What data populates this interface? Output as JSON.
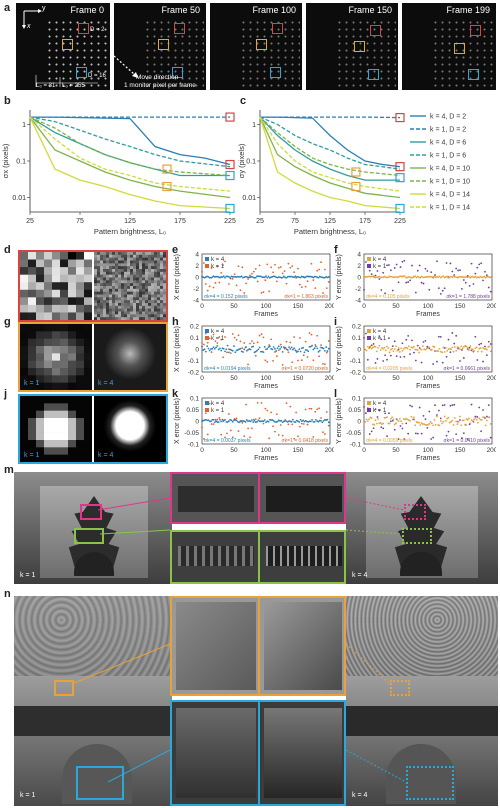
{
  "panels": {
    "a": "a",
    "b": "b",
    "c": "c",
    "d": "d",
    "e": "e",
    "f": "f",
    "g": "g",
    "h": "h",
    "i": "i",
    "j": "j",
    "k": "k",
    "l": "l",
    "m": "m",
    "n": "n"
  },
  "frames": [
    "Frame 0",
    "Frame 50",
    "Frame 100",
    "Frame 150",
    "Frame 199"
  ],
  "frame_annot": {
    "x": "x",
    "y": "y",
    "d2": "D = 2",
    "d16": "D = 16",
    "l31": "L₀ = 31",
    "l255": "L₀ = 255",
    "move1": "Move direction",
    "move2": "1 monitor pixel per frame"
  },
  "colors": {
    "red": "#d64541",
    "orange": "#e8a23a",
    "cyan": "#2ba7d9",
    "pink": "#e0368a",
    "green": "#8bc34a",
    "blue": "#2a7fb8",
    "purple": "#6b3fa0",
    "dorange": "#e2622f",
    "lgold": "#f0b85a"
  },
  "thumbs": {
    "k1": "k = 1",
    "k4": "k = 4"
  },
  "chart_data": [
    {
      "id": "b",
      "type": "line",
      "ylabel": "σx (pixels)",
      "xlabel": "Pattern brightness, L₀",
      "xticks": [
        25,
        75,
        125,
        175,
        225
      ],
      "yticks": [
        "0.01",
        "0.1",
        "1"
      ],
      "ylog": true,
      "ylim": [
        0.004,
        2.5
      ],
      "xlim": [
        25,
        225
      ],
      "series": [
        {
          "name": "k = 4, D = 2",
          "color": "#2a7fb8",
          "dash": false,
          "x": [
            25,
            50,
            75,
            100,
            125,
            150,
            175,
            200,
            225
          ],
          "y": [
            1.6,
            1.6,
            1.55,
            1.5,
            1.45,
            0.25,
            0.15,
            0.12,
            0.08
          ]
        },
        {
          "name": "k = 1, D = 2",
          "color": "#2a7fb8",
          "dash": true,
          "x": [
            25,
            75,
            125,
            175,
            225
          ],
          "y": [
            1.6,
            1.6,
            1.6,
            1.6,
            1.6
          ]
        },
        {
          "name": "k = 4, D = 6",
          "color": "#2f9ea0",
          "dash": false,
          "x": [
            25,
            50,
            75,
            100,
            125,
            150,
            175,
            225
          ],
          "y": [
            1.6,
            0.6,
            0.3,
            0.15,
            0.09,
            0.06,
            0.04,
            0.04
          ]
        },
        {
          "name": "k = 1, D = 6",
          "color": "#2f9ea0",
          "dash": true,
          "x": [
            25,
            50,
            75,
            100,
            125,
            150,
            175,
            225
          ],
          "y": [
            1.6,
            1.2,
            0.7,
            0.4,
            0.25,
            0.15,
            0.1,
            0.07
          ]
        },
        {
          "name": "k = 4, D = 10",
          "color": "#7fb34c",
          "dash": false,
          "x": [
            25,
            50,
            75,
            100,
            125,
            150,
            175,
            225
          ],
          "y": [
            1.6,
            0.2,
            0.1,
            0.05,
            0.03,
            0.02,
            0.015,
            0.01
          ]
        },
        {
          "name": "k = 1, D = 10",
          "color": "#7fb34c",
          "dash": true,
          "x": [
            25,
            50,
            75,
            100,
            125,
            150,
            175,
            225
          ],
          "y": [
            1.6,
            0.8,
            0.3,
            0.15,
            0.09,
            0.06,
            0.05,
            0.04
          ]
        },
        {
          "name": "k = 4, D = 14",
          "color": "#d2da3a",
          "dash": false,
          "x": [
            25,
            50,
            75,
            100,
            125,
            150,
            175,
            225
          ],
          "y": [
            1.6,
            0.06,
            0.03,
            0.02,
            0.012,
            0.008,
            0.006,
            0.005
          ]
        },
        {
          "name": "k = 1, D = 14",
          "color": "#d2da3a",
          "dash": true,
          "x": [
            25,
            50,
            75,
            100,
            125,
            150,
            175,
            225
          ],
          "y": [
            1.6,
            0.4,
            0.12,
            0.06,
            0.04,
            0.025,
            0.02,
            0.015
          ]
        }
      ],
      "markers": [
        {
          "x": 225,
          "y": 1.6,
          "color": "#d64541"
        },
        {
          "x": 225,
          "y": 0.08,
          "color": "#d64541"
        },
        {
          "x": 162,
          "y": 0.06,
          "color": "#e8a23a"
        },
        {
          "x": 162,
          "y": 0.02,
          "color": "#e8a23a"
        },
        {
          "x": 225,
          "y": 0.04,
          "color": "#2ba7d9"
        },
        {
          "x": 225,
          "y": 0.005,
          "color": "#2ba7d9"
        }
      ]
    },
    {
      "id": "c",
      "type": "line",
      "ylabel": "σy (pixels)",
      "xlabel": "Pattern brightness, L₀",
      "xticks": [
        25,
        75,
        125,
        175,
        225
      ],
      "yticks": [
        "0.01",
        "0.1",
        "1"
      ],
      "ylog": true,
      "ylim": [
        0.004,
        2.5
      ],
      "xlim": [
        25,
        225
      ],
      "series": [
        {
          "name": "k = 4, D = 2",
          "color": "#2a7fb8",
          "dash": false,
          "x": [
            25,
            50,
            75,
            100,
            125,
            150,
            175,
            200,
            225
          ],
          "y": [
            1.6,
            1.6,
            1.55,
            1.5,
            0.5,
            0.2,
            0.1,
            0.08,
            0.07
          ]
        },
        {
          "name": "k = 1, D = 2",
          "color": "#2a7fb8",
          "dash": true,
          "x": [
            25,
            75,
            125,
            175,
            225
          ],
          "y": [
            1.6,
            1.6,
            1.6,
            1.6,
            1.55
          ]
        },
        {
          "name": "k = 4, D = 6",
          "color": "#2f9ea0",
          "dash": false,
          "x": [
            25,
            50,
            75,
            100,
            125,
            150,
            175,
            225
          ],
          "y": [
            1.6,
            0.5,
            0.2,
            0.1,
            0.06,
            0.04,
            0.03,
            0.03
          ]
        },
        {
          "name": "k = 1, D = 6",
          "color": "#2f9ea0",
          "dash": true,
          "x": [
            25,
            50,
            75,
            100,
            125,
            150,
            175,
            225
          ],
          "y": [
            1.6,
            1.0,
            0.5,
            0.3,
            0.2,
            0.12,
            0.08,
            0.06
          ]
        },
        {
          "name": "k = 4, D = 10",
          "color": "#7fb34c",
          "dash": false,
          "x": [
            25,
            50,
            75,
            100,
            125,
            150,
            175,
            225
          ],
          "y": [
            1.6,
            0.15,
            0.07,
            0.04,
            0.025,
            0.018,
            0.013,
            0.01
          ]
        },
        {
          "name": "k = 1, D = 10",
          "color": "#7fb34c",
          "dash": true,
          "x": [
            25,
            50,
            75,
            100,
            125,
            150,
            175,
            225
          ],
          "y": [
            1.6,
            0.6,
            0.25,
            0.12,
            0.08,
            0.06,
            0.05,
            0.04
          ]
        },
        {
          "name": "k = 4, D = 14",
          "color": "#d2da3a",
          "dash": false,
          "x": [
            25,
            50,
            75,
            100,
            125,
            150,
            175,
            225
          ],
          "y": [
            1.6,
            0.05,
            0.025,
            0.015,
            0.01,
            0.008,
            0.006,
            0.005
          ]
        },
        {
          "name": "k = 1, D = 14",
          "color": "#d2da3a",
          "dash": true,
          "x": [
            25,
            50,
            75,
            100,
            125,
            150,
            175,
            225
          ],
          "y": [
            1.6,
            0.3,
            0.1,
            0.05,
            0.035,
            0.025,
            0.02,
            0.015
          ]
        }
      ],
      "markers": [
        {
          "x": 225,
          "y": 1.55,
          "color": "#d64541"
        },
        {
          "x": 225,
          "y": 0.07,
          "color": "#d64541"
        },
        {
          "x": 162,
          "y": 0.05,
          "color": "#e8a23a"
        },
        {
          "x": 162,
          "y": 0.02,
          "color": "#e8a23a"
        },
        {
          "x": 225,
          "y": 0.035,
          "color": "#2ba7d9"
        },
        {
          "x": 225,
          "y": 0.005,
          "color": "#2ba7d9"
        }
      ]
    },
    {
      "id": "e",
      "type": "scatter",
      "ylabel": "X error (pixels)",
      "xlabel": "Frames",
      "ylim": [
        -4,
        4
      ],
      "yticks": [
        "4",
        "2",
        "0",
        "-2",
        "-4"
      ],
      "yvals": [
        4,
        2,
        0,
        -2,
        -4
      ],
      "xticks": [
        "0",
        "50",
        "100",
        "150",
        "200"
      ],
      "legend": [
        "k = 4",
        "k = 1"
      ],
      "colors": [
        "#2a7fb8",
        "#e2622f"
      ],
      "spread": [
        0.15,
        3.0
      ],
      "sigma": [
        "σk=4 = 0.152 pixels",
        "σk=1 = 1.863 pixels"
      ]
    },
    {
      "id": "f",
      "type": "scatter",
      "ylabel": "Y error (pixels)",
      "xlabel": "Frames",
      "ylim": [
        -4,
        4
      ],
      "yticks": [
        "4",
        "2",
        "0",
        "-2",
        "-4"
      ],
      "yvals": [
        4,
        2,
        0,
        -2,
        -4
      ],
      "xticks": [
        "0",
        "50",
        "100",
        "150",
        "200"
      ],
      "legend": [
        "k = 4",
        "k = 1"
      ],
      "colors": [
        "#e8a23a",
        "#6b3fa0"
      ],
      "spread": [
        0.15,
        3.0
      ],
      "sigma": [
        "σk=4 = 0.105 pixels",
        "σk=1 = 1.788 pixels"
      ]
    },
    {
      "id": "h",
      "type": "scatter",
      "ylabel": "X error (pixels)",
      "xlabel": "Frames",
      "ylim": [
        -0.2,
        0.2
      ],
      "yticks": [
        "0.2",
        "0.1",
        "0",
        "-0.1",
        "-0.2"
      ],
      "yvals": [
        0.2,
        0.1,
        0,
        -0.1,
        -0.2
      ],
      "xticks": [
        "0",
        "50",
        "100",
        "150",
        "200"
      ],
      "legend": [
        "k = 4",
        "k = 1"
      ],
      "colors": [
        "#2a7fb8",
        "#e2622f"
      ],
      "spread": [
        0.03,
        0.14
      ],
      "sigma": [
        "σk=4 = 0.0194 pixels",
        "σk=1 = 0.0720 pixels"
      ]
    },
    {
      "id": "i",
      "type": "scatter",
      "ylabel": "Y error (pixels)",
      "xlabel": "Frames",
      "ylim": [
        -0.2,
        0.2
      ],
      "yticks": [
        "0.2",
        "0.1",
        "0",
        "-0.1",
        "-0.2"
      ],
      "yvals": [
        0.2,
        0.1,
        0,
        -0.1,
        -0.2
      ],
      "xticks": [
        "0",
        "50",
        "100",
        "150",
        "200"
      ],
      "legend": [
        "k = 4",
        "k = 1"
      ],
      "colors": [
        "#e8a23a",
        "#6b3fa0"
      ],
      "spread": [
        0.03,
        0.14
      ],
      "sigma": [
        "σk=4 = 0.0205 pixels",
        "σk=1 = 0.0661 pixels"
      ]
    },
    {
      "id": "k",
      "type": "scatter",
      "ylabel": "X error (pixels)",
      "xlabel": "Frames",
      "ylim": [
        -0.1,
        0.1
      ],
      "yticks": [
        "0.1",
        "0.05",
        "0",
        "-0.05",
        "-0.1"
      ],
      "yvals": [
        0.1,
        0.05,
        0,
        -0.05,
        -0.1
      ],
      "xticks": [
        "0",
        "50",
        "100",
        "150",
        "200"
      ],
      "legend": [
        "k = 4",
        "k = 1"
      ],
      "colors": [
        "#2a7fb8",
        "#e2622f"
      ],
      "spread": [
        0.006,
        0.08
      ],
      "sigma": [
        "σk=4 = 0.0037 pixels",
        "σk=1 = 0.0418 pixels"
      ]
    },
    {
      "id": "l",
      "type": "scatter",
      "ylabel": "Y error (pixels)",
      "xlabel": "Frames",
      "ylim": [
        -0.1,
        0.1
      ],
      "yticks": [
        "0.1",
        "0.05",
        "0",
        "-0.05",
        "-0.1"
      ],
      "yvals": [
        0.1,
        0.05,
        0,
        -0.05,
        -0.1
      ],
      "xticks": [
        "0",
        "50",
        "100",
        "150",
        "200"
      ],
      "legend": [
        "k = 4",
        "k = 1"
      ],
      "colors": [
        "#e8a23a",
        "#6b3fa0"
      ],
      "spread": [
        0.02,
        0.08
      ],
      "sigma": [
        "σk=4 = 0.0059 pixels",
        "σk=1 = 0.0410 pixels"
      ]
    }
  ]
}
